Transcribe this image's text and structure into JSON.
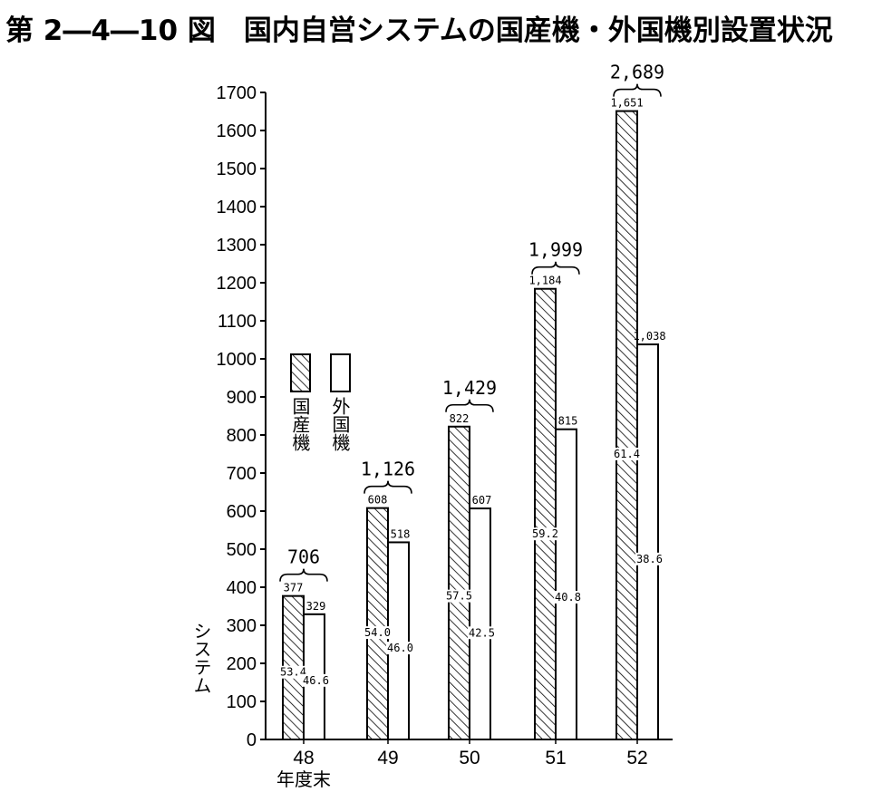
{
  "title": "第 2―4―10 図　国内自営システムの国産機・外国機別設置状況",
  "chart_data": {
    "type": "bar",
    "categories": [
      "48",
      "49",
      "50",
      "51",
      "52"
    ],
    "series": [
      {
        "name": "国産機",
        "values": [
          377,
          608,
          822,
          1184,
          1651
        ],
        "value_labels": [
          "377",
          "608",
          "822",
          "1,184",
          "1,651"
        ],
        "pct_labels": [
          "53.4",
          "54.0",
          "57.5",
          "59.2",
          "61.4"
        ],
        "fill": "hatched"
      },
      {
        "name": "外国機",
        "values": [
          329,
          518,
          607,
          815,
          1038
        ],
        "value_labels": [
          "329",
          "518",
          "607",
          "815",
          "1,038"
        ],
        "pct_labels": [
          "46.6",
          "46.0",
          "42.5",
          "40.8",
          "38.6"
        ],
        "fill": "white"
      }
    ],
    "totals": [
      "706",
      "1,126",
      "1,429",
      "1,999",
      "2,689"
    ],
    "xlabel": "年度末",
    "ylabel": "システム",
    "ylim": [
      0,
      1700
    ],
    "yticks": [
      0,
      100,
      200,
      300,
      400,
      500,
      600,
      700,
      800,
      900,
      1000,
      1100,
      1200,
      1300,
      1400,
      1500,
      1600,
      1700
    ],
    "legend": {
      "items": [
        "国産機",
        "外国機"
      ],
      "placement": "left-middle"
    },
    "grid": false,
    "colors": {
      "ink": "#000000",
      "background": "#ffffff"
    }
  }
}
